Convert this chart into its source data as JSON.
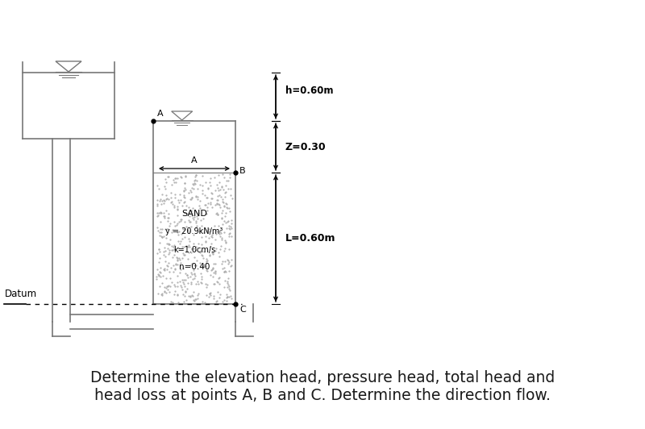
{
  "bg_color": "#ffffff",
  "text_color": "#000000",
  "line_color": "#000000",
  "gray_color": "#777777",
  "title_text": "Determine the elevation head, pressure head, total head and\nhead loss at points A, B and C. Determine the direction flow.",
  "title_fontsize": 13.5,
  "labels": {
    "h_label": "h=0.60m",
    "Z_label": "Z=0.30",
    "L_label": "L=0.60m",
    "sand_label": "SAND",
    "gamma_label": "y = 20.9kN/m³",
    "k_label": "k=1.0cm/s",
    "n_label": "n=0.40",
    "datum_label": "Datum",
    "A_label": "A",
    "B_label": "B",
    "C_label": "C"
  }
}
